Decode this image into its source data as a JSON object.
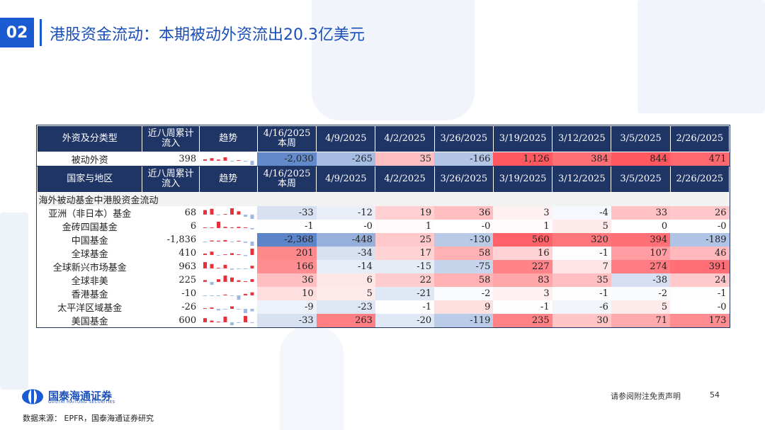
{
  "header": {
    "badge": "02",
    "title": "港股资金流动：本期被动外资流出20.3亿美元"
  },
  "table1": {
    "headers": [
      "外资及分类型",
      "近八周累计流入",
      "趋势",
      "4/16/2025 本周",
      "4/9/2025",
      "4/2/2025",
      "3/26/2025",
      "3/19/2025",
      "3/12/2025",
      "3/5/2025",
      "2/26/2025"
    ],
    "rows": [
      {
        "name": "被动外资",
        "cum": "398",
        "vals": [
          "-2,030",
          "-265",
          "35",
          "-166",
          "1,126",
          "384",
          "844",
          "471"
        ]
      }
    ]
  },
  "table2": {
    "headers": [
      "国家与地区",
      "近八周累计流入",
      "趋势",
      "4/16/2025 本周",
      "4/9/2025",
      "4/2/2025",
      "3/26/2025",
      "3/19/2025",
      "3/12/2025",
      "3/5/2025",
      "2/26/2025"
    ],
    "section_label": "海外被动基金中港股资金流动",
    "rows": [
      {
        "name": "亚洲（非日本）基金",
        "cum": "68",
        "vals": [
          "-33",
          "-12",
          "19",
          "36",
          "3",
          "-4",
          "33",
          "26"
        ]
      },
      {
        "name": "金砖四国基金",
        "cum": "6",
        "vals": [
          "-1",
          "-0",
          "1",
          "-0",
          "1",
          "5",
          "0",
          "-0"
        ]
      },
      {
        "name": "中国基金",
        "cum": "-1,836",
        "vals": [
          "-2,368",
          "-448",
          "25",
          "-130",
          "560",
          "320",
          "394",
          "-189"
        ]
      },
      {
        "name": "全球基金",
        "cum": "410",
        "vals": [
          "201",
          "-34",
          "17",
          "58",
          "16",
          "-1",
          "107",
          "46"
        ]
      },
      {
        "name": "全球新兴市场基金",
        "cum": "963",
        "vals": [
          "166",
          "-14",
          "-15",
          "-75",
          "227",
          "7",
          "274",
          "391"
        ]
      },
      {
        "name": "全球非美",
        "cum": "225",
        "vals": [
          "36",
          "6",
          "22",
          "58",
          "83",
          "35",
          "-38",
          "24"
        ]
      },
      {
        "name": "香港基金",
        "cum": "-10",
        "vals": [
          "10",
          "5",
          "-21",
          "-2",
          "3",
          "-1",
          "-2",
          "-1"
        ]
      },
      {
        "name": "太平洋区域基金",
        "cum": "-26",
        "vals": [
          "-9",
          "-23",
          "-1",
          "9",
          "-1",
          "-6",
          "5",
          "-0"
        ]
      },
      {
        "name": "美国基金",
        "cum": "600",
        "vals": [
          "-33",
          "263",
          "-20",
          "-119",
          "235",
          "30",
          "71",
          "173"
        ]
      }
    ]
  },
  "colors": {
    "brand_blue": "#1a5bd2",
    "header_navy": "#1f3566",
    "pos_red": "#e8303a",
    "neg_blue": "#3f6fc0"
  },
  "footer": {
    "logo_name": "国泰海通证券",
    "logo_en": "GUOTAI HAITONG SECURITIES",
    "disclaimer": "请参阅附注免责声明",
    "page": "54",
    "source": "数据来源：  EPFR，国泰海通证券研究"
  }
}
